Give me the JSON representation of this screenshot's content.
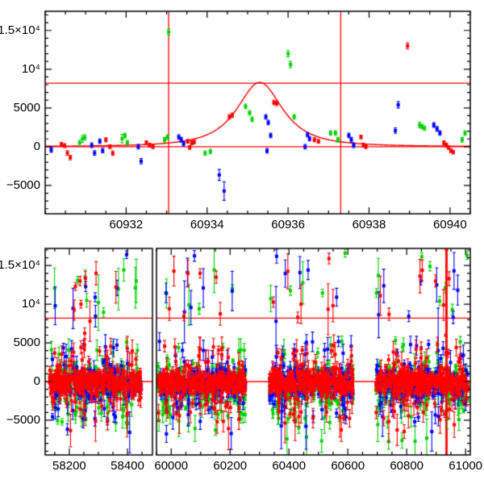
{
  "figure": {
    "background": "#ffffff",
    "frame_color": "#000000",
    "accent_line_color": "#ff0000"
  },
  "colors": {
    "red": "#ff0000",
    "green": "#00d200",
    "blue": "#0000ff"
  },
  "chart_data": [
    {
      "type": "scatter",
      "panel": "event-zoom",
      "x_range": [
        60930.0,
        60940.5
      ],
      "y_range": [
        -8650,
        17470
      ],
      "x_ticks": [
        {
          "value": 60932,
          "label": "60932"
        },
        {
          "value": 60934,
          "label": "60934"
        },
        {
          "value": 60936,
          "label": "60936"
        },
        {
          "value": 60938,
          "label": "60938"
        },
        {
          "value": 60940,
          "label": "60940"
        }
      ],
      "x_minor_step": 0.5,
      "y_ticks": [
        {
          "value": 15000,
          "label": "1.5×10⁴"
        },
        {
          "value": 10000,
          "label": "10⁴"
        },
        {
          "value": 5000,
          "label": "5000"
        },
        {
          "value": 0,
          "label": "0"
        },
        {
          "value": -5000,
          "label": "−5000"
        }
      ],
      "y_minor_step": 1000,
      "baseline_y": 0,
      "threshold_y": 8200,
      "event_marker_x": [
        60933.05,
        60937.3
      ],
      "model_curve": {
        "t0": 60935.3,
        "amplitude": 8300,
        "width": 0.8,
        "exponent": 1.3
      },
      "series": [
        {
          "name": "green",
          "color": "green",
          "points": [
            [
              60930.85,
              500,
              350
            ],
            [
              60930.92,
              1000,
              450
            ],
            [
              60930.98,
              1200,
              350
            ],
            [
              60931.9,
              1040,
              550
            ],
            [
              60931.97,
              1450,
              300
            ],
            [
              60932.03,
              520,
              300
            ],
            [
              60932.95,
              900,
              300
            ],
            [
              60933.02,
              1250,
              300
            ],
            [
              60933.05,
              14800,
              400
            ],
            [
              60933.95,
              -830,
              300
            ],
            [
              60934.08,
              -620,
              300
            ],
            [
              60934.95,
              5200,
              300
            ],
            [
              60935.05,
              4370,
              300
            ],
            [
              60935.11,
              3540,
              300
            ],
            [
              60936.0,
              12000,
              400
            ],
            [
              60936.06,
              10600,
              400
            ],
            [
              60936.15,
              3850,
              300
            ],
            [
              60937.05,
              1770,
              300
            ],
            [
              60937.17,
              1770,
              300
            ],
            [
              60937.23,
              900,
              300
            ],
            [
              60939.25,
              2800,
              350
            ],
            [
              60939.31,
              2600,
              300
            ],
            [
              60939.37,
              2400,
              300
            ],
            [
              60940.3,
              900,
              300
            ],
            [
              60940.37,
              1770,
              300
            ]
          ]
        },
        {
          "name": "blue",
          "color": "blue",
          "points": [
            [
              60930.15,
              -400,
              300
            ],
            [
              60931.15,
              200,
              300
            ],
            [
              60931.22,
              -800,
              300
            ],
            [
              60931.35,
              700,
              300
            ],
            [
              60931.42,
              -500,
              300
            ],
            [
              60932.3,
              0,
              300
            ],
            [
              60932.37,
              -1870,
              350
            ],
            [
              60933.3,
              1250,
              300
            ],
            [
              60933.36,
              900,
              300
            ],
            [
              60933.42,
              400,
              300
            ],
            [
              60934.3,
              -3640,
              700
            ],
            [
              60934.42,
              -5720,
              1200
            ],
            [
              60935.45,
              3850,
              300
            ],
            [
              60935.51,
              3120,
              300
            ],
            [
              60935.57,
              1460,
              300
            ],
            [
              60935.48,
              -520,
              300
            ],
            [
              60936.42,
              0,
              300
            ],
            [
              60936.48,
              1560,
              300
            ],
            [
              60936.53,
              1040,
              300
            ],
            [
              60937.5,
              1460,
              300
            ],
            [
              60937.56,
              900,
              300
            ],
            [
              60937.62,
              200,
              300
            ],
            [
              60938.65,
              2080,
              350
            ],
            [
              60938.72,
              5400,
              400
            ],
            [
              60939.6,
              2800,
              300
            ],
            [
              60939.68,
              2300,
              300
            ],
            [
              60939.75,
              1770,
              300
            ]
          ]
        },
        {
          "name": "red",
          "color": "red",
          "points": [
            [
              60930.4,
              300,
              250
            ],
            [
              60930.48,
              150,
              250
            ],
            [
              60930.55,
              -800,
              300
            ],
            [
              60930.62,
              -1400,
              300
            ],
            [
              60931.5,
              900,
              250
            ],
            [
              60931.6,
              0,
              250
            ],
            [
              60931.67,
              -830,
              300
            ],
            [
              60932.5,
              520,
              250
            ],
            [
              60932.58,
              200,
              250
            ],
            [
              60932.66,
              0,
              250
            ],
            [
              60933.52,
              700,
              250
            ],
            [
              60933.57,
              -100,
              250
            ],
            [
              60933.62,
              500,
              250
            ],
            [
              60933.68,
              600,
              250
            ],
            [
              60934.55,
              3850,
              300
            ],
            [
              60934.62,
              4060,
              300
            ],
            [
              60935.65,
              5700,
              300
            ],
            [
              60935.72,
              5600,
              300
            ],
            [
              60936.65,
              900,
              250
            ],
            [
              60936.75,
              700,
              250
            ],
            [
              60937.8,
              1250,
              250
            ],
            [
              60937.86,
              200,
              250
            ],
            [
              60937.92,
              0,
              250
            ],
            [
              60938.95,
              13000,
              400
            ],
            [
              60939.85,
              500,
              250
            ],
            [
              60939.91,
              200,
              250
            ],
            [
              60939.96,
              -100,
              250
            ],
            [
              60940.02,
              -500,
              250
            ],
            [
              60940.08,
              -700,
              250
            ]
          ]
        }
      ]
    },
    {
      "type": "scatter",
      "panel": "full-baseline",
      "broken_axis": true,
      "segments": [
        {
          "x_range": [
            58117,
            58486
          ],
          "x_ticks": [
            {
              "value": 58200,
              "label": "58200"
            },
            {
              "value": 58400,
              "label": "58400"
            }
          ]
        },
        {
          "x_range": [
            59950,
            61016
          ],
          "x_ticks": [
            {
              "value": 60000,
              "label": "60000"
            },
            {
              "value": 60200,
              "label": "60200"
            },
            {
              "value": 60400,
              "label": "60400"
            },
            {
              "value": 60600,
              "label": "60600"
            },
            {
              "value": 60800,
              "label": "60800"
            },
            {
              "value": 61000,
              "label": "61000"
            }
          ]
        }
      ],
      "x_minor_step": 50,
      "y_range": [
        -9490,
        17210
      ],
      "y_ticks": [
        {
          "value": 15000,
          "label": "1.5×10⁴"
        },
        {
          "value": 10000,
          "label": "10⁴"
        },
        {
          "value": 5000,
          "label": "5000"
        },
        {
          "value": 0,
          "label": "0"
        },
        {
          "value": -5000,
          "label": "−5000"
        }
      ],
      "y_minor_step": 1000,
      "baseline_y": 0,
      "threshold_y": 8200,
      "event_marker_x": [
        60933.05,
        60937.3
      ],
      "clusters": [
        {
          "seed": 11,
          "x_min": 58132,
          "x_max": 58448
        },
        {
          "seed": 22,
          "x_min": 59955,
          "x_max": 60253
        },
        {
          "seed": 33,
          "x_min": 60332,
          "x_max": 60618
        },
        {
          "seed": 44,
          "x_min": 60695,
          "x_max": 61008
        }
      ],
      "scatter_profiles": {
        "green": {
          "n_core": 150,
          "core_sigma": 1250,
          "core_bias": -350,
          "n_mid": 42,
          "mid_range": [
            1500,
            5400
          ],
          "mid_neg_frac": 0.68,
          "n_out": 7,
          "out_up_range": [
            8500,
            15000
          ],
          "out_up_frac": 0.45,
          "out_down_range": [
            4500,
            7800
          ],
          "err_core": [
            250,
            700
          ],
          "err_mid": [
            400,
            1600
          ],
          "err_out": [
            600,
            3000
          ]
        },
        "blue": {
          "n_core": 150,
          "core_sigma": 1000,
          "core_bias": -150,
          "n_mid": 38,
          "mid_range": [
            1400,
            5200
          ],
          "mid_neg_frac": 0.6,
          "n_out": 6,
          "out_up_range": [
            8500,
            14500
          ],
          "out_up_frac": 0.5,
          "out_down_range": [
            4200,
            7000
          ],
          "err_core": [
            250,
            700
          ],
          "err_mid": [
            400,
            1600
          ],
          "err_out": [
            600,
            3000
          ]
        },
        "red": {
          "n_core": 310,
          "core_sigma": 700,
          "core_bias": -50,
          "n_mid": 60,
          "mid_range": [
            1200,
            4800
          ],
          "mid_neg_frac": 0.55,
          "n_out": 8,
          "out_up_range": [
            8500,
            14500
          ],
          "out_up_frac": 0.5,
          "out_down_range": [
            4000,
            6500
          ],
          "err_core": [
            250,
            700
          ],
          "err_mid": [
            400,
            1600
          ],
          "err_out": [
            600,
            3000
          ]
        }
      },
      "extra_points": {
        "green": [
          [
            58229,
            13100,
            500
          ],
          [
            58300,
            10200,
            3600
          ],
          [
            58318,
            8950,
            600
          ],
          [
            58397,
            5100,
            500
          ],
          [
            60208,
            12000,
            500
          ],
          [
            60095,
            9400,
            700
          ],
          [
            60591,
            16600,
            500
          ],
          [
            60514,
            11450,
            500
          ],
          [
            60405,
            11750,
            600
          ],
          [
            60851,
            16150,
            500
          ],
          [
            60879,
            14900,
            600
          ],
          [
            60931,
            12100,
            700
          ],
          [
            60697,
            11450,
            600
          ],
          [
            61005,
            16300,
            500
          ],
          [
            60955,
            9300,
            700
          ],
          [
            60912,
            10400,
            600
          ]
        ],
        "blue": [
          [
            58397,
            16400,
            500
          ],
          [
            58289,
            10900,
            600
          ],
          [
            58290,
            8450,
            1400
          ],
          [
            58250,
            4800,
            500
          ],
          [
            60079,
            16250,
            700
          ],
          [
            60109,
            12100,
            2500
          ],
          [
            60045,
            9000,
            4000
          ],
          [
            60358,
            16200,
            900
          ],
          [
            60356,
            7800,
            4500
          ],
          [
            60848,
            13000,
            500
          ],
          [
            60807,
            8450,
            700
          ],
          [
            60902,
            12500,
            2200
          ],
          [
            60907,
            4000,
            5500
          ],
          [
            60958,
            8300,
            800
          ]
        ],
        "red": [
          [
            58237,
            13000,
            600
          ],
          [
            58221,
            12300,
            500
          ],
          [
            58292,
            14000,
            1500
          ],
          [
            58240,
            10000,
            500
          ],
          [
            58271,
            7800,
            2600
          ],
          [
            58253,
            6240,
            700
          ],
          [
            58150,
            3700,
            600
          ],
          [
            60057,
            14000,
            1700
          ],
          [
            60098,
            14000,
            600
          ],
          [
            60153,
            13500,
            800
          ],
          [
            60043,
            8450,
            600
          ],
          [
            60536,
            15900,
            700
          ],
          [
            60533,
            9350,
            3300
          ],
          [
            60441,
            10000,
            2500
          ],
          [
            60430,
            8300,
            700
          ],
          [
            60898,
            13000,
            800
          ],
          [
            60944,
            13300,
            900
          ],
          [
            60933,
            6000,
            11000
          ],
          [
            60936,
            2000,
            15000
          ],
          [
            60925,
            9900,
            2000
          ],
          [
            60740,
            8700,
            800
          ]
        ]
      }
    }
  ]
}
